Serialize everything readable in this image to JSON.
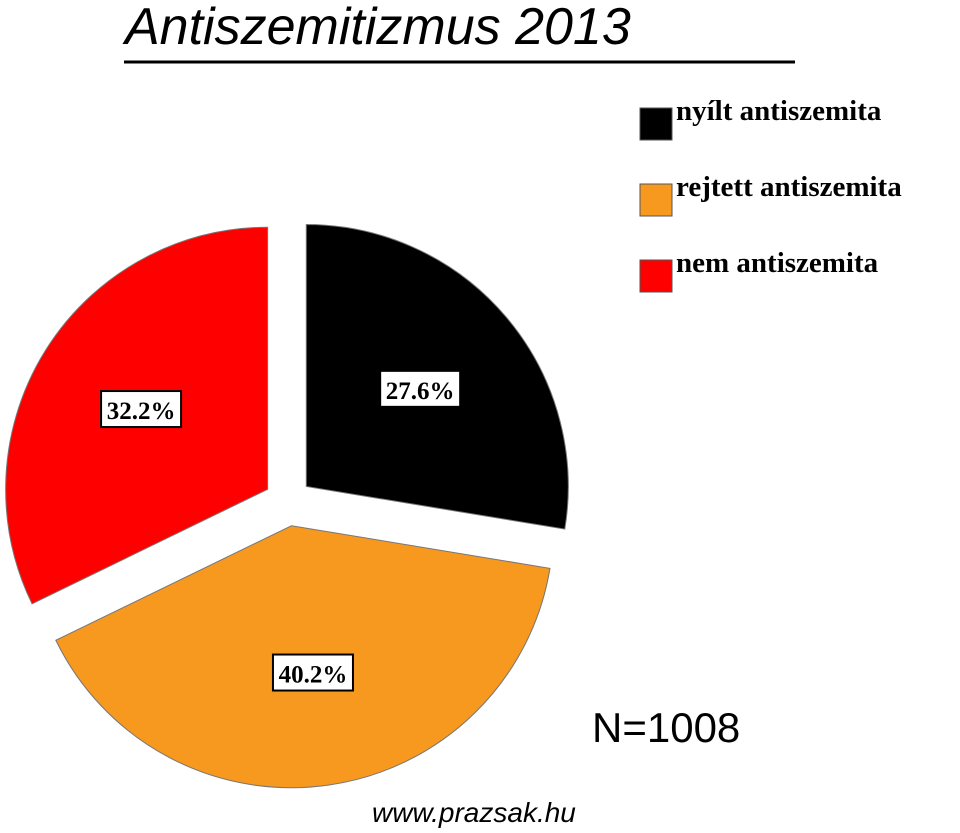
{
  "chart_data": {
    "type": "pie",
    "title": "Antiszemitizmus 2013",
    "categories": [
      "nyílt antiszemita",
      "rejtett antiszemita",
      "nem antiszemita"
    ],
    "values": [
      27.6,
      40.2,
      32.2
    ],
    "value_labels": [
      "27.6%",
      "40.2%",
      "32.2%"
    ],
    "colors": [
      "#000000",
      "#f7981f",
      "#ff0000"
    ],
    "legend": "top-right",
    "annotations": [
      "N=1008",
      "www.prazsak.hu"
    ]
  }
}
